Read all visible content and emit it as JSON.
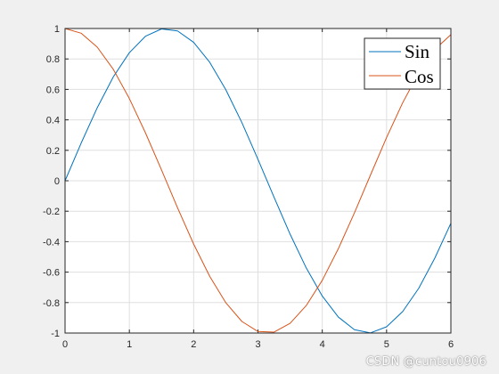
{
  "chart_data": {
    "type": "line",
    "title": "",
    "xlabel": "",
    "ylabel": "",
    "xlim": [
      0,
      6
    ],
    "ylim": [
      -1,
      1
    ],
    "xticks": [
      0,
      1,
      2,
      3,
      4,
      5,
      6
    ],
    "xtick_labels": [
      "0",
      "1",
      "2",
      "3",
      "4",
      "5",
      "6"
    ],
    "yticks": [
      -1,
      -0.8,
      -0.6,
      -0.4,
      -0.2,
      0,
      0.2,
      0.4,
      0.6,
      0.8,
      1
    ],
    "ytick_labels": [
      "-1",
      "-0.8",
      "-0.6",
      "-0.4",
      "-0.2",
      "0",
      "0.2",
      "0.4",
      "0.6",
      "0.8",
      "1"
    ],
    "grid": true,
    "legend_position": "top-right",
    "x": [
      0,
      0.25,
      0.5,
      0.75,
      1,
      1.25,
      1.5,
      1.75,
      2,
      2.25,
      2.5,
      2.75,
      3,
      3.25,
      3.5,
      3.75,
      4,
      4.25,
      4.5,
      4.75,
      5,
      5.25,
      5.5,
      5.75,
      6
    ],
    "series": [
      {
        "name": "Sin",
        "color": "#0072bd",
        "values": [
          0,
          0.247,
          0.479,
          0.682,
          0.841,
          0.949,
          0.997,
          0.984,
          0.909,
          0.778,
          0.598,
          0.382,
          0.141,
          -0.108,
          -0.351,
          -0.572,
          -0.757,
          -0.895,
          -0.978,
          -0.999,
          -0.959,
          -0.859,
          -0.706,
          -0.508,
          -0.279
        ]
      },
      {
        "name": "Cos",
        "color": "#d95319",
        "values": [
          1,
          0.969,
          0.878,
          0.732,
          0.54,
          0.315,
          0.071,
          -0.178,
          -0.416,
          -0.628,
          -0.801,
          -0.924,
          -0.99,
          -0.994,
          -0.936,
          -0.82,
          -0.654,
          -0.446,
          -0.211,
          0.038,
          0.284,
          0.512,
          0.709,
          0.862,
          0.96
        ]
      }
    ]
  },
  "watermark": "CSDN @cuntou0906"
}
